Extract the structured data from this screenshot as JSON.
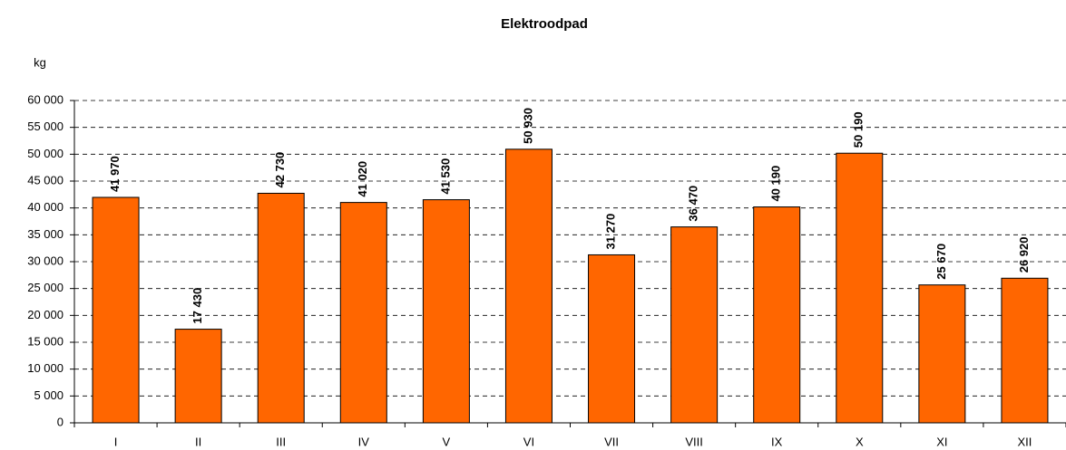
{
  "chart_data": {
    "type": "bar",
    "title": "Elektroodpad",
    "y_label": "kg",
    "categories": [
      "I",
      "II",
      "III",
      "IV",
      "V",
      "VI",
      "VII",
      "VIII",
      "IX",
      "X",
      "XI",
      "XII"
    ],
    "values": [
      41970,
      17430,
      42730,
      41020,
      41530,
      50930,
      31270,
      36470,
      40190,
      50190,
      25670,
      26920
    ],
    "value_labels": [
      "41 970",
      "17 430",
      "42 730",
      "41 020",
      "41 530",
      "50 930",
      "31 270",
      "36 470",
      "40 190",
      "50 190",
      "25 670",
      "26 920"
    ],
    "color": "#ff6600",
    "ylim": [
      0,
      60000
    ],
    "yticks": [
      0,
      {
        "value": 5000,
        "label": "5 000"
      },
      {
        "value": 10000,
        "label": "10 000"
      },
      {
        "value": 15000,
        "label": "15 000"
      },
      {
        "value": 20000,
        "label": "20 000"
      },
      {
        "value": 25000,
        "label": "25 000"
      },
      {
        "value": 30000,
        "label": "30 000"
      },
      {
        "value": 35000,
        "label": "35 000"
      },
      {
        "value": 40000,
        "label": "40 000"
      },
      {
        "value": 45000,
        "label": "45 000"
      },
      {
        "value": 50000,
        "label": "50 000"
      },
      {
        "value": 55000,
        "label": "55 000"
      },
      {
        "value": 60000,
        "label": "60 000"
      }
    ],
    "grid": true
  }
}
